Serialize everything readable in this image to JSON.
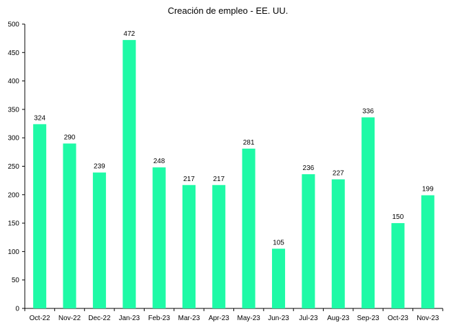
{
  "chart_data": {
    "type": "bar",
    "title": "Creación de empleo - EE. UU.",
    "xlabel": "",
    "ylabel": "",
    "categories": [
      "Oct-22",
      "Nov-22",
      "Dec-22",
      "Jan-23",
      "Feb-23",
      "Mar-23",
      "Apr-23",
      "May-23",
      "Jun-23",
      "Jul-23",
      "Aug-23",
      "Sep-23",
      "Oct-23",
      "Nov-23"
    ],
    "values": [
      324,
      290,
      239,
      472,
      248,
      217,
      217,
      281,
      105,
      236,
      227,
      336,
      150,
      199
    ],
    "ylim": [
      0,
      500
    ],
    "yticks": [
      0,
      50,
      100,
      150,
      200,
      250,
      300,
      350,
      400,
      450,
      500
    ],
    "grid": false,
    "legend": "none",
    "bar_color": "#1EFAA6",
    "axis_color": "#000000"
  }
}
